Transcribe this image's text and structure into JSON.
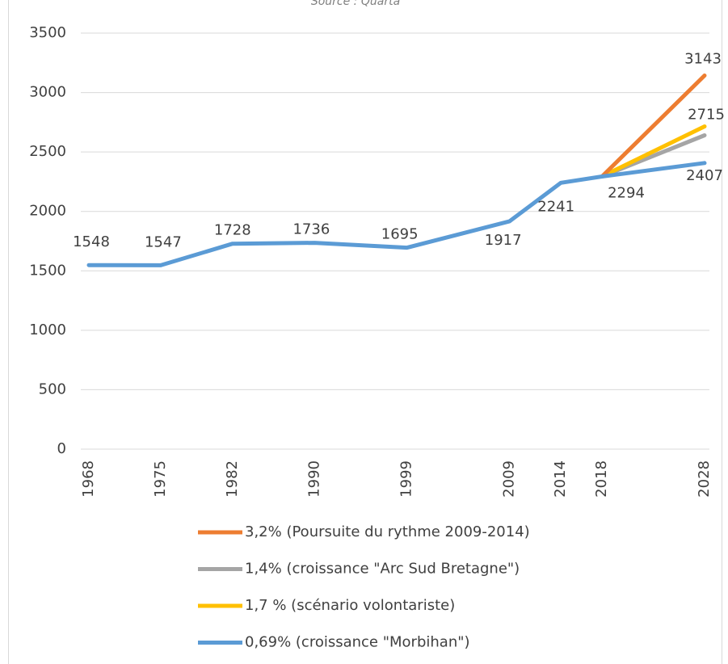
{
  "chart_data": {
    "type": "line",
    "title": "Source : Quarta",
    "x": [
      1968,
      1975,
      1982,
      1990,
      1999,
      2009,
      2014,
      2018,
      2028
    ],
    "series": [
      {
        "name": "3,2% (Poursuite du rythme 2009-2014)",
        "color": "#ed7d31",
        "values": [
          null,
          null,
          null,
          null,
          null,
          null,
          null,
          2294,
          3143
        ],
        "value_labels": [
          null,
          null,
          null,
          null,
          null,
          null,
          null,
          null,
          "3143"
        ]
      },
      {
        "name": "1,4% (croissance \"Arc Sud Bretagne\")",
        "color": "#a5a5a5",
        "values": [
          null,
          null,
          null,
          null,
          null,
          null,
          null,
          2294,
          2640
        ]
      },
      {
        "name": "1,7 % (scénario volontariste)",
        "color": "#ffc000",
        "values": [
          null,
          null,
          null,
          null,
          null,
          null,
          null,
          2294,
          2715
        ],
        "value_labels": [
          null,
          null,
          null,
          null,
          null,
          null,
          null,
          null,
          "2715"
        ]
      },
      {
        "name": "0,69% (croissance \"Morbihan\")",
        "color": "#5b9bd5",
        "values": [
          1548,
          1547,
          1728,
          1736,
          1695,
          1917,
          2241,
          2294,
          2407
        ],
        "value_labels": [
          "1548",
          "1547",
          "1728",
          "1736",
          "1695",
          "1917",
          "2241",
          "2294",
          "2407"
        ]
      }
    ],
    "xlim": [
      1968,
      2028
    ],
    "xticks": [
      1968,
      1975,
      1982,
      1990,
      1999,
      2009,
      2014,
      2018,
      2028
    ],
    "ylim": [
      0,
      3500
    ],
    "yticks": [
      0,
      500,
      1000,
      1500,
      2000,
      2500,
      3000,
      3500
    ],
    "grid": true,
    "legend": "bottom"
  }
}
